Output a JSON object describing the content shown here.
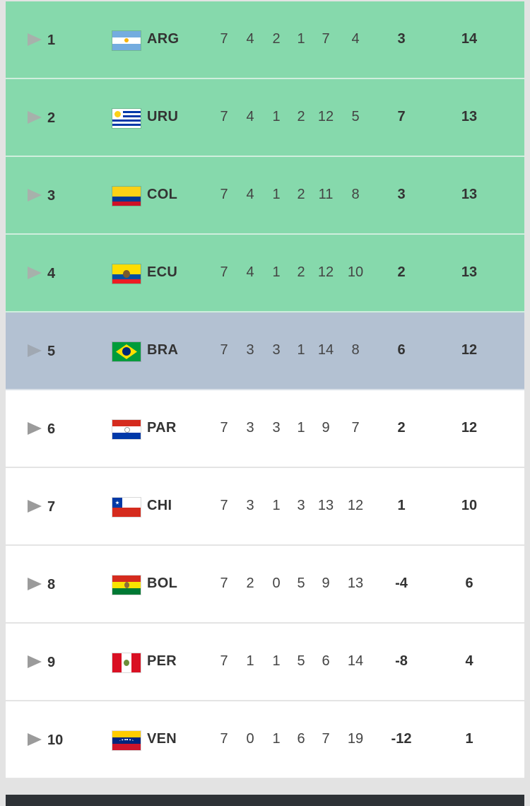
{
  "standings": [
    {
      "rank": "1",
      "code": "ARG",
      "flag": "argentina-flag",
      "zone": "qualified",
      "played": "7",
      "won": "4",
      "drawn": "2",
      "lost": "1",
      "goals_for": "7",
      "goals_against": "4",
      "goal_diff": "3",
      "points": "14"
    },
    {
      "rank": "2",
      "code": "URU",
      "flag": "uruguay-flag",
      "zone": "qualified",
      "played": "7",
      "won": "4",
      "drawn": "1",
      "lost": "2",
      "goals_for": "12",
      "goals_against": "5",
      "goal_diff": "7",
      "points": "13"
    },
    {
      "rank": "3",
      "code": "COL",
      "flag": "colombia-flag",
      "zone": "qualified",
      "played": "7",
      "won": "4",
      "drawn": "1",
      "lost": "2",
      "goals_for": "11",
      "goals_against": "8",
      "goal_diff": "3",
      "points": "13"
    },
    {
      "rank": "4",
      "code": "ECU",
      "flag": "ecuador-flag",
      "zone": "qualified",
      "played": "7",
      "won": "4",
      "drawn": "1",
      "lost": "2",
      "goals_for": "12",
      "goals_against": "10",
      "goal_diff": "2",
      "points": "13"
    },
    {
      "rank": "5",
      "code": "BRA",
      "flag": "brazil-flag",
      "zone": "playoff",
      "played": "7",
      "won": "3",
      "drawn": "3",
      "lost": "1",
      "goals_for": "14",
      "goals_against": "8",
      "goal_diff": "6",
      "points": "12"
    },
    {
      "rank": "6",
      "code": "PAR",
      "flag": "paraguay-flag",
      "zone": "none",
      "played": "7",
      "won": "3",
      "drawn": "3",
      "lost": "1",
      "goals_for": "9",
      "goals_against": "7",
      "goal_diff": "2",
      "points": "12"
    },
    {
      "rank": "7",
      "code": "CHI",
      "flag": "chile-flag",
      "zone": "none",
      "played": "7",
      "won": "3",
      "drawn": "1",
      "lost": "3",
      "goals_for": "13",
      "goals_against": "12",
      "goal_diff": "1",
      "points": "10"
    },
    {
      "rank": "8",
      "code": "BOL",
      "flag": "bolivia-flag",
      "zone": "none",
      "played": "7",
      "won": "2",
      "drawn": "0",
      "lost": "5",
      "goals_for": "9",
      "goals_against": "13",
      "goal_diff": "-4",
      "points": "6"
    },
    {
      "rank": "9",
      "code": "PER",
      "flag": "peru-flag",
      "zone": "none",
      "played": "7",
      "won": "1",
      "drawn": "1",
      "lost": "5",
      "goals_for": "6",
      "goals_against": "14",
      "goal_diff": "-8",
      "points": "4"
    },
    {
      "rank": "10",
      "code": "VEN",
      "flag": "venezuela-flag",
      "zone": "none",
      "played": "7",
      "won": "0",
      "drawn": "1",
      "lost": "6",
      "goals_for": "7",
      "goals_against": "19",
      "goal_diff": "-12",
      "points": "1"
    }
  ],
  "colors": {
    "qualified_zone": "#86d9ac",
    "playoff_zone": "#b3c1d2",
    "default_row": "#ffffff",
    "page_background": "#e3e3e3",
    "footer_bar": "#2e3236"
  },
  "icons": {
    "row_expand": "play-triangle-icon"
  }
}
